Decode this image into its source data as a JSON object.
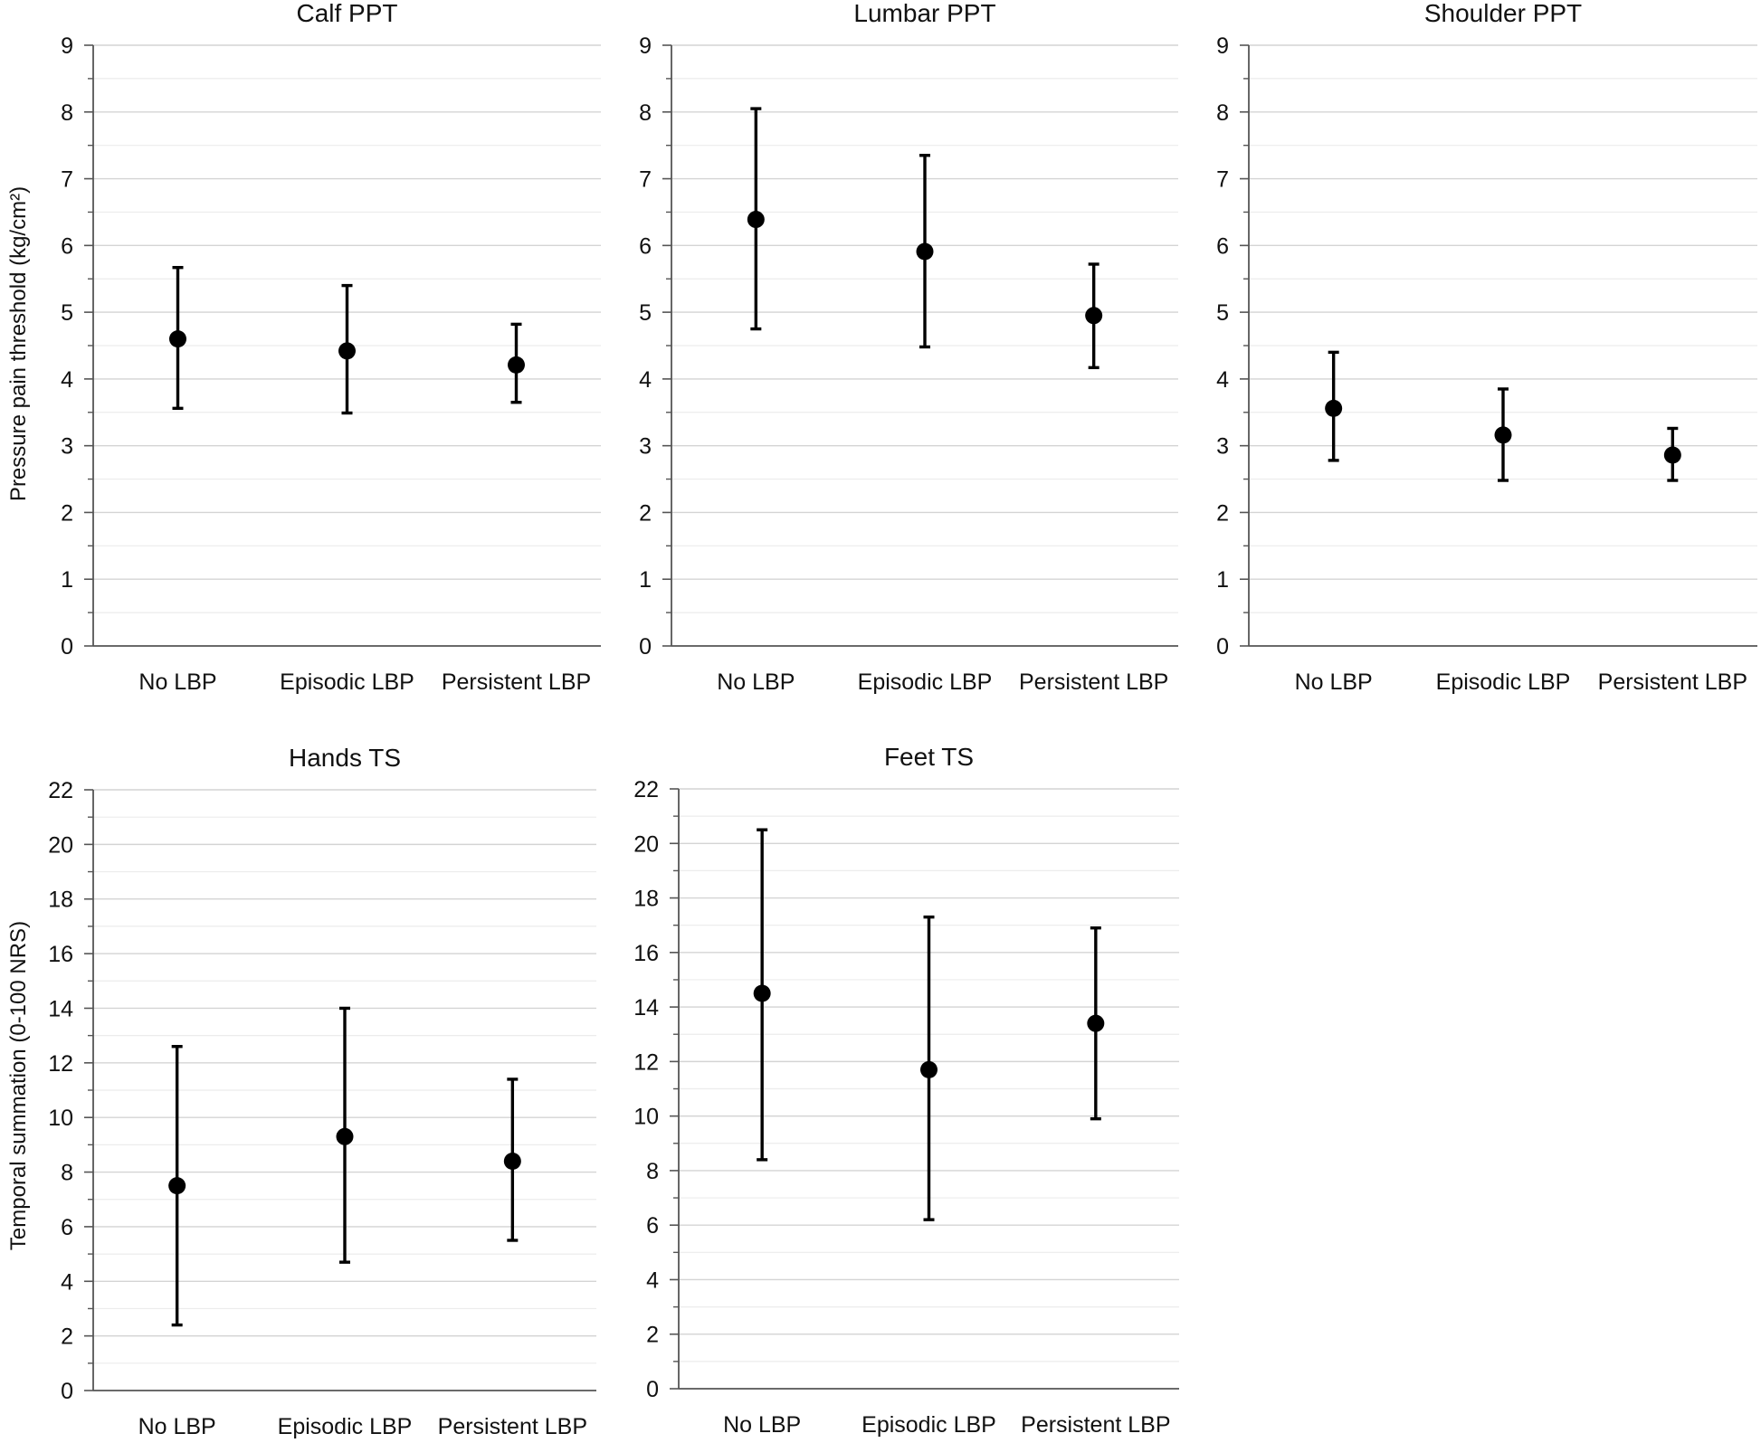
{
  "chart_data": [
    {
      "type": "scatter",
      "title": "Calf PPT",
      "ylabel": "Pressure pain threshold (kg/cm²)",
      "xlabel": "",
      "categories": [
        "No LBP",
        "Episodic LBP",
        "Persistent LBP"
      ],
      "values": [
        4.6,
        4.42,
        4.21
      ],
      "error_low": [
        3.56,
        3.49,
        3.65
      ],
      "error_high": [
        5.67,
        5.4,
        4.82
      ],
      "ylim": [
        0,
        9
      ],
      "yticks": [
        0,
        1,
        2,
        3,
        4,
        5,
        6,
        7,
        8,
        9
      ],
      "grid": true
    },
    {
      "type": "scatter",
      "title": "Lumbar PPT",
      "ylabel": "",
      "xlabel": "",
      "categories": [
        "No LBP",
        "Episodic LBP",
        "Persistent LBP"
      ],
      "values": [
        6.39,
        5.91,
        4.95
      ],
      "error_low": [
        4.75,
        4.48,
        4.17
      ],
      "error_high": [
        8.05,
        7.35,
        5.72
      ],
      "ylim": [
        0,
        9
      ],
      "yticks": [
        0,
        1,
        2,
        3,
        4,
        5,
        6,
        7,
        8,
        9
      ],
      "grid": true
    },
    {
      "type": "scatter",
      "title": "Shoulder PPT",
      "ylabel": "",
      "xlabel": "",
      "categories": [
        "No LBP",
        "Episodic LBP",
        "Persistent LBP"
      ],
      "values": [
        3.56,
        3.16,
        2.86
      ],
      "error_low": [
        2.78,
        2.48,
        2.48
      ],
      "error_high": [
        4.4,
        3.85,
        3.26
      ],
      "ylim": [
        0,
        9
      ],
      "yticks": [
        0,
        1,
        2,
        3,
        4,
        5,
        6,
        7,
        8,
        9
      ],
      "grid": true
    },
    {
      "type": "scatter",
      "title": "Hands TS",
      "ylabel": "Temporal summation (0-100 NRS)",
      "xlabel": "",
      "categories": [
        "No LBP",
        "Episodic LBP",
        "Persistent LBP"
      ],
      "values": [
        7.5,
        9.3,
        8.4
      ],
      "error_low": [
        2.4,
        4.7,
        5.5
      ],
      "error_high": [
        12.6,
        14.0,
        11.4
      ],
      "ylim": [
        0,
        22
      ],
      "yticks": [
        0,
        2,
        4,
        6,
        8,
        10,
        12,
        14,
        16,
        18,
        20,
        22
      ],
      "grid": true
    },
    {
      "type": "scatter",
      "title": "Feet TS",
      "ylabel": "",
      "xlabel": "",
      "categories": [
        "No LBP",
        "Episodic LBP",
        "Persistent LBP"
      ],
      "values": [
        14.5,
        11.7,
        13.4
      ],
      "error_low": [
        8.4,
        6.2,
        9.9
      ],
      "error_high": [
        20.5,
        17.3,
        16.9
      ],
      "ylim": [
        0,
        22
      ],
      "yticks": [
        0,
        2,
        4,
        6,
        8,
        10,
        12,
        14,
        16,
        18,
        20,
        22
      ],
      "grid": true
    }
  ]
}
